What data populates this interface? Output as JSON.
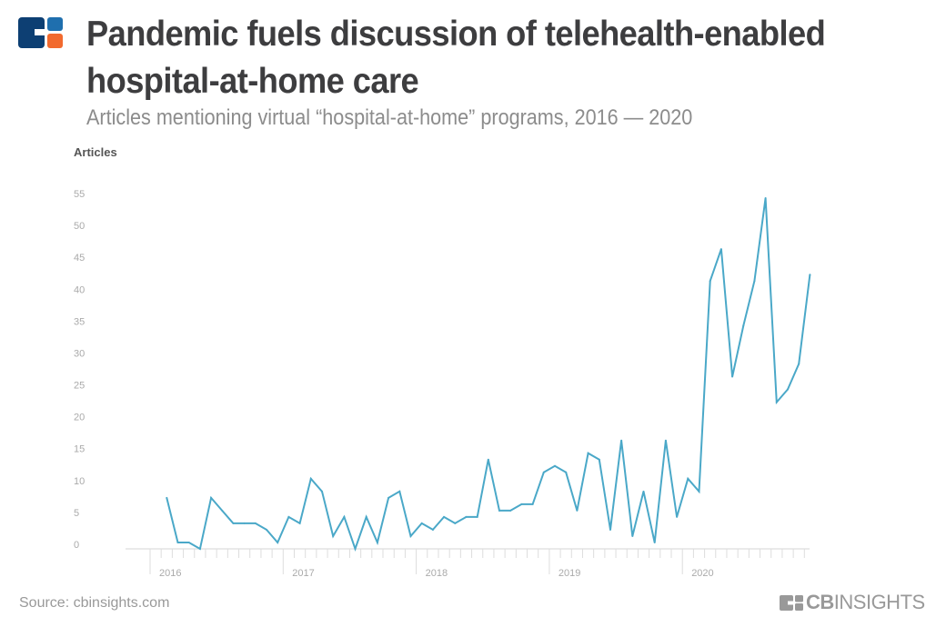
{
  "header": {
    "title_line1": "Pandemic fuels discussion of telehealth-enabled",
    "title_line2": "hospital-at-home care",
    "subtitle": "Articles mentioning virtual “hospital-at-home” programs, 2016 — 2020",
    "logo_colors": {
      "blue": "#0d3f73",
      "light_blue": "#1f6fae",
      "orange": "#f26a2e"
    }
  },
  "footer": {
    "source": "Source: cbinsights.com",
    "brand_bold": "CB",
    "brand_light": "INSIGHTS"
  },
  "chart_data": {
    "type": "line",
    "ylabel": "Articles",
    "xlabel": "",
    "ylim": [
      0,
      55
    ],
    "yticks": [
      "0",
      "5",
      "10",
      "15",
      "20",
      "25",
      "30",
      "35",
      "40",
      "45",
      "50",
      "55"
    ],
    "xticks": [
      "2016",
      "2017",
      "2018",
      "2019",
      "2020"
    ],
    "grid": false,
    "line_color": "#4aa8c8",
    "x_start": "2016-02",
    "x_end": "2020-12",
    "x_interval": "monthly",
    "values": [
      8,
      1,
      1,
      0,
      8,
      6,
      4,
      4,
      4,
      3,
      1,
      5,
      4,
      11,
      9,
      2,
      5,
      0,
      5,
      1,
      8,
      9,
      2,
      4,
      3,
      5,
      4,
      5,
      5,
      14,
      6,
      6,
      7,
      7,
      12,
      13,
      12,
      6,
      15,
      14,
      3,
      17,
      2,
      9,
      1,
      17,
      5,
      11,
      9,
      42,
      47,
      27,
      35,
      42,
      55,
      23,
      25,
      29,
      43
    ]
  }
}
